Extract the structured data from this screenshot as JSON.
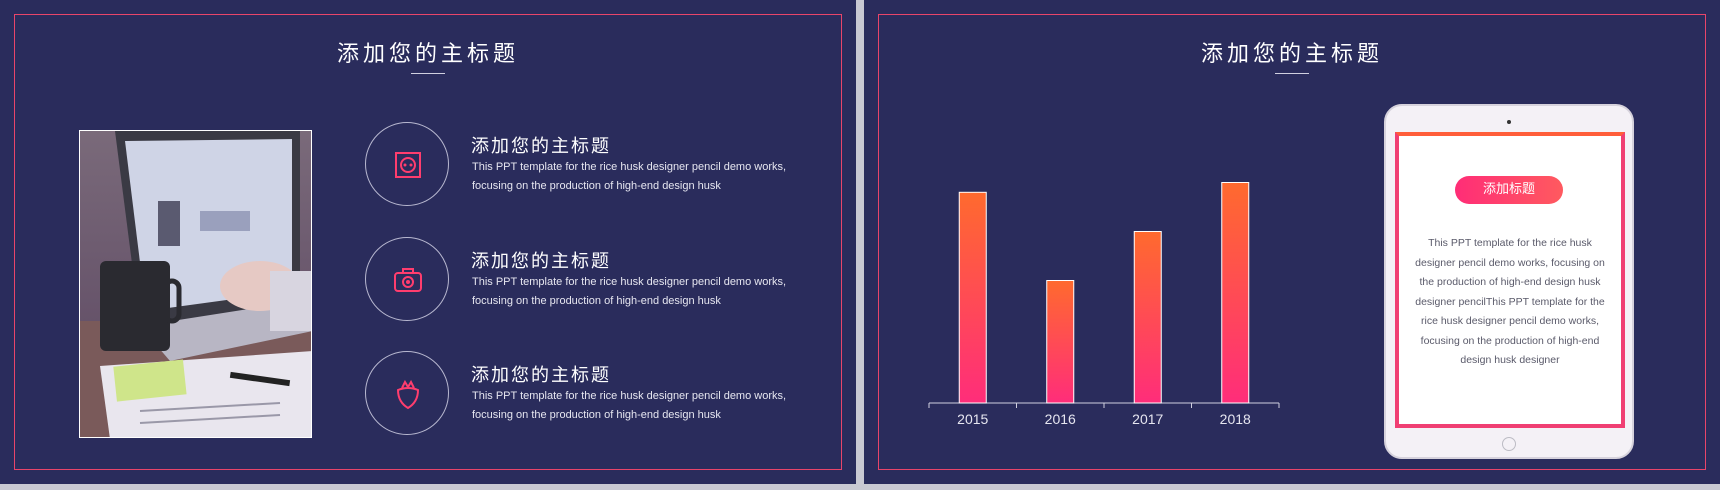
{
  "left_slide": {
    "title": "添加您的主标题",
    "features": [
      {
        "icon": "socket-icon",
        "heading": "添加您的主标题",
        "text": "This PPT template for the rice husk designer pencil demo works, focusing on the production of high-end design husk"
      },
      {
        "icon": "camera-icon",
        "heading": "添加您的主标题",
        "text": "This PPT template for the rice husk designer pencil demo works, focusing on the production of high-end design husk"
      },
      {
        "icon": "strawberry-icon",
        "heading": "添加您的主标题",
        "text": "This PPT template for the rice husk designer pencil demo works, focusing on the production of high-end design husk"
      }
    ]
  },
  "right_slide": {
    "title": "添加您的主标题",
    "tablet": {
      "button_label": "添加标题",
      "text": "This PPT template for the rice husk designer pencil demo works, focusing on the production of high-end design husk designer pencilThis PPT template for the rice husk designer pencil demo works, focusing on the production of high-end design husk designer"
    }
  },
  "colors": {
    "background": "#2a2c5c",
    "accent_orange": "#ff6a2e",
    "accent_pink": "#ff2d7a",
    "frame": "#e8456a"
  },
  "chart_data": {
    "type": "bar",
    "categories": [
      "2015",
      "2016",
      "2017",
      "2018"
    ],
    "values": [
      86,
      50,
      70,
      90
    ],
    "ylim": [
      0,
      100
    ],
    "grid": false
  }
}
